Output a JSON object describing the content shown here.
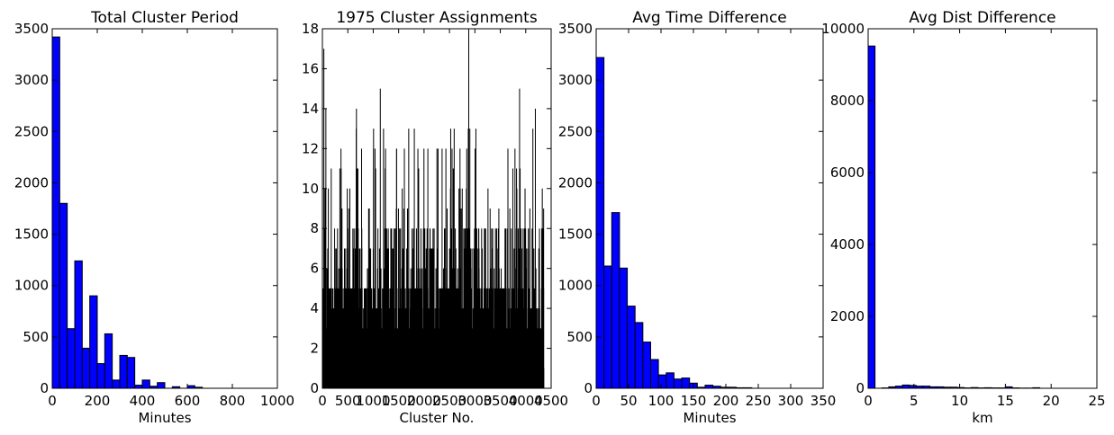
{
  "chart_data": [
    {
      "type": "bar",
      "title": "Total Cluster Period",
      "xlabel": "Minutes",
      "ylabel": "",
      "xlim": [
        0,
        1000
      ],
      "ylim": [
        0,
        3500
      ],
      "xticks": [
        0,
        200,
        400,
        600,
        800,
        1000
      ],
      "yticks": [
        0,
        500,
        1000,
        1500,
        2000,
        2500,
        3000,
        3500
      ],
      "bin_width": 33.3,
      "x": [
        0,
        33.3,
        66.7,
        100,
        133.3,
        166.7,
        200,
        233.3,
        266.7,
        300,
        333.3,
        366.7,
        400,
        433.3,
        466.7,
        500,
        533.3,
        566.7,
        600,
        633.3,
        666.7
      ],
      "values": [
        3420,
        1800,
        580,
        1240,
        390,
        900,
        240,
        530,
        80,
        320,
        300,
        30,
        80,
        20,
        55,
        0,
        15,
        0,
        25,
        10,
        0
      ],
      "color": "#0000ff"
    },
    {
      "type": "bar",
      "title": "1975 Cluster Assignments",
      "xlabel": "Cluster No.",
      "ylabel": "",
      "xlim": [
        0,
        4500
      ],
      "ylim": [
        0,
        18
      ],
      "xticks": [
        0,
        500,
        1000,
        1500,
        2000,
        2500,
        3000,
        3500,
        4000,
        4500
      ],
      "yticks": [
        0,
        2,
        4,
        6,
        8,
        10,
        12,
        14,
        16,
        18
      ],
      "x_extent": [
        0,
        4350
      ],
      "peaks": [
        {
          "x": 20,
          "y": 17
        },
        {
          "x": 60,
          "y": 14
        },
        {
          "x": 660,
          "y": 14
        },
        {
          "x": 1130,
          "y": 15
        },
        {
          "x": 2870,
          "y": 18
        },
        {
          "x": 3870,
          "y": 15
        },
        {
          "x": 4180,
          "y": 14
        }
      ],
      "color": "#000000"
    },
    {
      "type": "bar",
      "title": "Avg Time Difference",
      "xlabel": "Minutes",
      "ylabel": "",
      "xlim": [
        0,
        350
      ],
      "ylim": [
        0,
        3500
      ],
      "xticks": [
        0,
        50,
        100,
        150,
        200,
        250,
        300,
        350
      ],
      "yticks": [
        0,
        500,
        1000,
        1500,
        2000,
        2500,
        3000,
        3500
      ],
      "bin_width": 12,
      "x": [
        0,
        12,
        24,
        36,
        48,
        60,
        72,
        84,
        96,
        108,
        120,
        132,
        144,
        156,
        168,
        180,
        192,
        204,
        216,
        228
      ],
      "values": [
        3220,
        1190,
        1710,
        1170,
        800,
        640,
        450,
        280,
        130,
        150,
        90,
        100,
        50,
        10,
        30,
        20,
        10,
        10,
        5,
        5
      ],
      "color": "#0000ff"
    },
    {
      "type": "bar",
      "title": "Avg Dist Difference",
      "xlabel": "km",
      "ylabel": "",
      "xlim": [
        0,
        25
      ],
      "ylim": [
        0,
        10000
      ],
      "xticks": [
        0,
        5,
        10,
        15,
        20,
        25
      ],
      "yticks": [
        0,
        2000,
        4000,
        6000,
        8000,
        10000
      ],
      "bin_width": 0.75,
      "x": [
        0,
        0.75,
        1.5,
        2.25,
        3,
        3.75,
        4.5,
        5.25,
        6,
        6.75,
        7.5,
        8.25,
        9,
        9.75,
        10.5,
        11.25,
        12,
        12.75,
        13.5,
        14.25,
        15,
        15.75,
        16.5,
        17.25,
        18,
        18.75
      ],
      "values": [
        9520,
        0,
        10,
        40,
        60,
        90,
        80,
        60,
        60,
        40,
        40,
        30,
        30,
        20,
        10,
        20,
        10,
        15,
        10,
        10,
        40,
        10,
        5,
        5,
        15,
        0
      ],
      "color": "#0000ff"
    }
  ]
}
